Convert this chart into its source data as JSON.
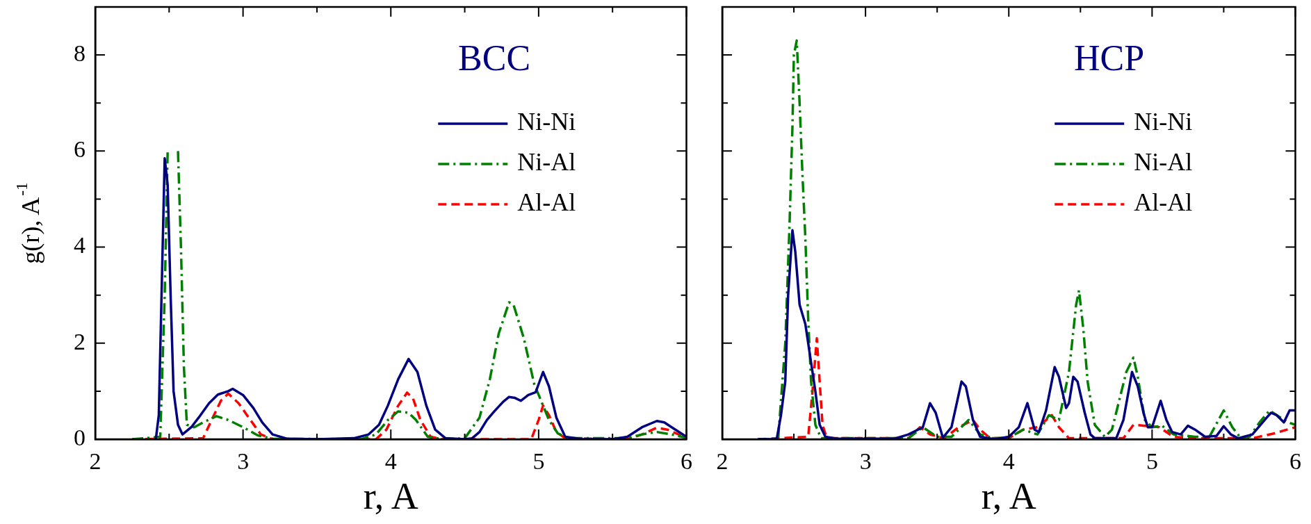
{
  "chart_data": [
    {
      "type": "line",
      "title": "BCC",
      "xlabel": "r, A",
      "ylabel": "g(r), A$^{-1}$",
      "legend": "top right",
      "xlim": [
        2,
        6
      ],
      "xticks": [
        2,
        {
          "value": 2.5,
          "label": null
        },
        3,
        {
          "value": 3.5,
          "label": null
        },
        4,
        {
          "value": 4.5,
          "label": null
        },
        5,
        {
          "value": 5.5,
          "label": null
        },
        6
      ],
      "ylim": [
        0,
        9
      ],
      "yticks": [
        0,
        {
          "value": 1,
          "label": null
        },
        2,
        {
          "value": 3,
          "label": null
        },
        4,
        {
          "value": 5,
          "label": null
        },
        6,
        {
          "value": 7,
          "label": null
        },
        8
      ],
      "series": [
        {
          "name": "Ni-Ni",
          "color": "#000080",
          "line_style": "solid",
          "x": [
            2.41,
            2.43,
            2.47,
            2.49,
            2.51,
            2.53,
            2.56,
            2.59,
            2.65,
            2.7,
            2.77,
            2.83,
            2.9,
            2.93,
            3.0,
            3.07,
            3.13,
            3.2,
            3.3,
            3.5,
            3.75,
            3.85,
            3.92,
            3.98,
            4.05,
            4.12,
            4.18,
            4.24,
            4.3,
            4.37,
            4.5,
            4.55,
            4.6,
            4.65,
            4.7,
            4.76,
            4.8,
            4.84,
            4.88,
            4.93,
            4.98,
            5.03,
            5.07,
            5.12,
            5.18,
            5.3,
            5.5,
            5.6,
            5.7,
            5.8,
            5.85,
            5.9,
            6.0
          ],
          "values": [
            0,
            0.5,
            5.85,
            5.3,
            3,
            1.0,
            0.3,
            0.1,
            0.25,
            0.45,
            0.75,
            0.93,
            1.0,
            1.05,
            0.92,
            0.65,
            0.35,
            0.1,
            0.01,
            0,
            0.02,
            0.1,
            0.3,
            0.7,
            1.25,
            1.67,
            1.4,
            0.7,
            0.2,
            0.02,
            0,
            0.02,
            0.15,
            0.4,
            0.58,
            0.78,
            0.88,
            0.86,
            0.8,
            0.92,
            0.98,
            1.4,
            1.1,
            0.45,
            0.05,
            0,
            0,
            0.05,
            0.25,
            0.38,
            0.35,
            0.25,
            0.05
          ]
        },
        {
          "name": "Ni-Al",
          "color": "#008000",
          "line_style": "dashdot",
          "x": [
            2.25,
            2.44,
            2.47,
            2.49,
            2.51,
            2.53,
            2.56,
            2.58,
            2.6,
            2.62,
            2.67,
            2.73,
            2.82,
            2.9,
            3.0,
            3.1,
            3.2,
            3.8,
            3.9,
            3.98,
            4.05,
            4.12,
            4.17,
            4.25,
            4.35,
            4.5,
            4.6,
            4.67,
            4.73,
            4.8,
            4.83,
            4.9,
            4.97,
            5.03,
            5.07,
            5.13,
            5.2,
            5.6,
            5.7,
            5.8,
            5.9,
            6.0
          ],
          "values": [
            0,
            0.05,
            3,
            6,
            null,
            null,
            6,
            4,
            1.5,
            0.3,
            0.25,
            0.35,
            0.48,
            0.4,
            0.25,
            0.08,
            0.01,
            0,
            0.1,
            0.4,
            0.58,
            0.55,
            0.4,
            0.05,
            0,
            0.02,
            0.45,
            1.25,
            2.2,
            2.85,
            2.8,
            2.1,
            1.15,
            0.7,
            0.4,
            0.12,
            0.02,
            0.02,
            0.1,
            0.15,
            0.1,
            0.03
          ]
        },
        {
          "name": "Al-Al",
          "color": "#ff0000",
          "line_style": "dashed",
          "x": [
            2.25,
            2.73,
            2.78,
            2.85,
            2.9,
            2.97,
            3.05,
            3.12,
            3.2,
            3.9,
            3.97,
            4.05,
            4.11,
            4.15,
            4.2,
            4.27,
            4.35,
            4.95,
            5.0,
            5.03,
            5.07,
            5.12,
            5.18,
            5.6,
            5.7,
            5.8,
            5.87,
            6.0
          ],
          "values": [
            0,
            0.02,
            0.35,
            0.8,
            0.95,
            0.75,
            0.4,
            0.1,
            0,
            0,
            0.2,
            0.7,
            0.97,
            0.85,
            0.4,
            0.05,
            0,
            0,
            0.4,
            0.7,
            0.5,
            0.15,
            0.02,
            0,
            0.1,
            0.24,
            0.2,
            0.03
          ]
        }
      ]
    },
    {
      "type": "line",
      "title": "HCP",
      "xlabel": "r, A",
      "legend": "top right",
      "tick_labels": "x",
      "xlim": [
        2,
        6
      ],
      "xticks": [
        2,
        {
          "value": 2.5,
          "label": null
        },
        3,
        {
          "value": 3.5,
          "label": null
        },
        4,
        {
          "value": 4.5,
          "label": null
        },
        5,
        {
          "value": 5.5,
          "label": null
        },
        6
      ],
      "ylim": [
        0,
        9
      ],
      "yticks": [
        {
          "value": 0,
          "label": null
        },
        {
          "value": 1,
          "label": null
        },
        {
          "value": 2,
          "label": null
        },
        {
          "value": 3,
          "label": null
        },
        {
          "value": 4,
          "label": null
        },
        {
          "value": 5,
          "label": null
        },
        {
          "value": 6,
          "label": null
        },
        {
          "value": 7,
          "label": null
        },
        {
          "value": 8,
          "label": null
        }
      ],
      "series": [
        {
          "name": "Ni-Ni",
          "color": "#000080",
          "line_style": "solid",
          "x": [
            2.25,
            2.38,
            2.41,
            2.44,
            2.46,
            2.49,
            2.51,
            2.54,
            2.58,
            2.62,
            2.65,
            2.68,
            2.72,
            2.8,
            3.2,
            3.3,
            3.4,
            3.45,
            3.49,
            3.54,
            3.6,
            3.67,
            3.7,
            3.75,
            3.8,
            3.9,
            4.0,
            4.07,
            4.13,
            4.18,
            4.21,
            4.26,
            4.32,
            4.35,
            4.4,
            4.42,
            4.45,
            4.48,
            4.53,
            4.57,
            4.6,
            4.75,
            4.8,
            4.86,
            4.9,
            4.94,
            4.97,
            5.0,
            5.06,
            5.1,
            5.14,
            5.2,
            5.25,
            5.3,
            5.37,
            5.45,
            5.5,
            5.55,
            5.6,
            5.7,
            5.8,
            5.83,
            5.87,
            5.92,
            5.96,
            6.0
          ],
          "values": [
            0,
            0,
            0.5,
            1.2,
            3,
            4.35,
            3.9,
            2.8,
            2.4,
            1.6,
            1.0,
            0.3,
            0.05,
            0.01,
            0.01,
            0.1,
            0.25,
            0.75,
            0.55,
            0.03,
            0.25,
            1.2,
            1.1,
            0.4,
            0.05,
            0,
            0.05,
            0.25,
            0.75,
            0.2,
            0.15,
            0.6,
            1.5,
            1.3,
            0.65,
            0.75,
            1.3,
            1.2,
            0.55,
            0.1,
            0.02,
            0.02,
            0.4,
            1.4,
            1.1,
            0.55,
            0.25,
            0.25,
            0.8,
            0.4,
            0.15,
            0.1,
            0.28,
            0.2,
            0.05,
            0.07,
            0.27,
            0.1,
            0.02,
            0.1,
            0.45,
            0.55,
            0.5,
            0.35,
            0.6,
            0.6
          ]
        },
        {
          "name": "Ni-Al",
          "color": "#008000",
          "line_style": "dashdot",
          "x": [
            2.25,
            2.39,
            2.44,
            2.47,
            2.49,
            2.5,
            2.52,
            2.54,
            2.56,
            2.58,
            2.6,
            2.62,
            2.65,
            2.69,
            3.3,
            3.4,
            3.5,
            3.6,
            3.72,
            3.8,
            3.9,
            4.0,
            4.1,
            4.2,
            4.28,
            4.35,
            4.42,
            4.47,
            4.49,
            4.52,
            4.55,
            4.6,
            4.67,
            4.72,
            4.77,
            4.82,
            4.87,
            4.9,
            4.95,
            5.0,
            5.07,
            5.15,
            5.3,
            5.4,
            5.5,
            5.56,
            5.62,
            5.68,
            5.75,
            5.82,
            5.87,
            5.95,
            6.0
          ],
          "values": [
            0,
            0,
            2,
            4.5,
            6.5,
            8.0,
            8.3,
            7.0,
            5.5,
            4.2,
            2.5,
            1.2,
            0.3,
            0.02,
            0.02,
            0.25,
            0.05,
            0.05,
            0.4,
            0.1,
            0.02,
            0.03,
            0.2,
            0.1,
            0.5,
            0.4,
            1.4,
            2.8,
            3.1,
            2.3,
            1.2,
            0.3,
            0.05,
            0.2,
            0.8,
            1.4,
            1.7,
            1.3,
            0.4,
            0.25,
            0.28,
            0.1,
            0.05,
            0.05,
            0.6,
            0.25,
            0.02,
            0.05,
            0.35,
            0.6,
            0.5,
            0.35,
            0.3
          ]
        },
        {
          "name": "Al-Al",
          "color": "#ff0000",
          "line_style": "dashed",
          "x": [
            2.25,
            2.6,
            2.63,
            2.66,
            2.68,
            2.7,
            2.73,
            3.3,
            3.38,
            3.45,
            3.55,
            3.65,
            3.75,
            3.8,
            3.87,
            4.0,
            4.1,
            4.2,
            4.3,
            4.35,
            4.42,
            4.8,
            4.87,
            4.95,
            5.05,
            5.15,
            5.3,
            5.6,
            5.7,
            5.85,
            6.0
          ],
          "values": [
            0,
            0.05,
            1.0,
            2.1,
            1.2,
            0.3,
            0.02,
            0.02,
            0.25,
            0.1,
            0.02,
            0.25,
            0.4,
            0.2,
            0.02,
            0.02,
            0.2,
            0.25,
            0.5,
            0.25,
            0.02,
            0.02,
            0.3,
            0.28,
            0.25,
            0.05,
            0.02,
            0.02,
            0.02,
            0.12,
            0.25
          ]
        }
      ]
    }
  ]
}
